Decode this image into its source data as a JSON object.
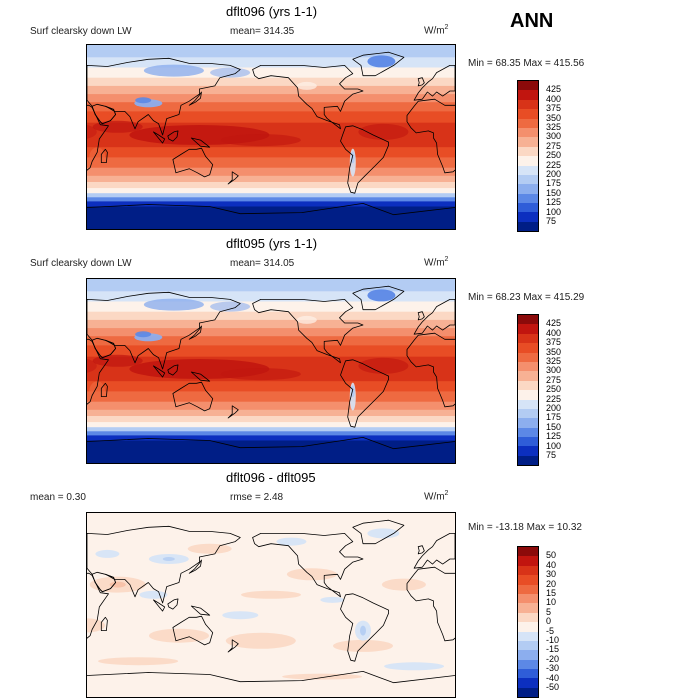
{
  "season": "ANN",
  "panels": [
    {
      "id": "top",
      "title": "dflt096 (yrs 1-1)",
      "variable": "Surf clearsky down LW",
      "stat": "mean= 314.35",
      "units_base": "W/m",
      "units_sup": "2",
      "minmax": "Min =  68.35 Max = 415.56",
      "levels": [
        "425",
        "400",
        "375",
        "350",
        "325",
        "300",
        "275",
        "250",
        "225",
        "200",
        "175",
        "150",
        "125",
        "100",
        "75"
      ],
      "colors": [
        "#8b0a0a",
        "#c1150f",
        "#d83318",
        "#e84d25",
        "#ee6a41",
        "#f48f6d",
        "#f7b194",
        "#fbd8c4",
        "#fdf2ea",
        "#d6e4f7",
        "#b3ccf3",
        "#8caeee",
        "#5c88e6",
        "#2f5dd8",
        "#0c2fbf",
        "#001e86"
      ],
      "field": "clear"
    },
    {
      "id": "middle",
      "title": "dflt095 (yrs 1-1)",
      "variable": "Surf clearsky down LW",
      "stat": "mean= 314.05",
      "units_base": "W/m",
      "units_sup": "2",
      "minmax": "Min =  68.23 Max = 415.29",
      "levels": [
        "425",
        "400",
        "375",
        "350",
        "325",
        "300",
        "275",
        "250",
        "225",
        "200",
        "175",
        "150",
        "125",
        "100",
        "75"
      ],
      "colors": [
        "#8b0a0a",
        "#c1150f",
        "#d83318",
        "#e84d25",
        "#ee6a41",
        "#f48f6d",
        "#f7b194",
        "#fbd8c4",
        "#fdf2ea",
        "#d6e4f7",
        "#b3ccf3",
        "#8caeee",
        "#5c88e6",
        "#2f5dd8",
        "#0c2fbf",
        "#001e86"
      ],
      "field": "clear"
    },
    {
      "id": "bottom",
      "title": "dflt096 - dflt095",
      "stat": "mean =    0.30",
      "stat2": "rmse =    2.48",
      "units_base": "W/m",
      "units_sup": "2",
      "minmax": "Min = -13.18 Max =   10.32",
      "levels": [
        "50",
        "40",
        "30",
        "20",
        "15",
        "10",
        "5",
        "0",
        "-5",
        "-10",
        "-15",
        "-20",
        "-30",
        "-40",
        "-50"
      ],
      "colors": [
        "#8b0a0a",
        "#c1150f",
        "#d83318",
        "#e84d25",
        "#ee6a41",
        "#f48f6d",
        "#f7b194",
        "#fbd8c4",
        "#fdf2ea",
        "#d6e4f7",
        "#b3ccf3",
        "#8caeee",
        "#5c88e6",
        "#2f5dd8",
        "#0c2fbf",
        "#001e86"
      ],
      "field": "diff"
    }
  ]
}
